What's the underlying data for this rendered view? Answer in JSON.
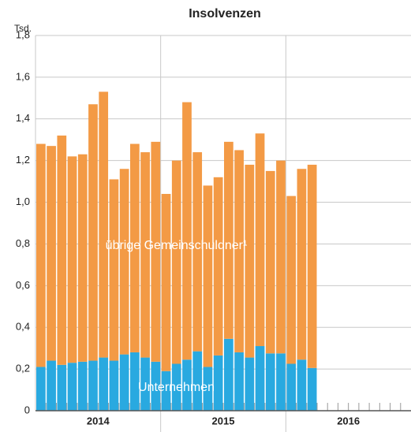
{
  "chart_data": {
    "type": "stacked-bar",
    "title": "Insolvenzen",
    "y_label": "Tsd.",
    "x_groups": [
      "2014",
      "2015",
      "2016"
    ],
    "categories": [
      null,
      null,
      null,
      null,
      null,
      null,
      null,
      null,
      null,
      null,
      null,
      null,
      null,
      null,
      null,
      null,
      null,
      null,
      null,
      null,
      null,
      null,
      null,
      null,
      null,
      null,
      null
    ],
    "series": [
      {
        "name": "Unternehmen",
        "color": "#29a9e0",
        "values": [
          0.21,
          0.24,
          0.22,
          0.23,
          0.235,
          0.24,
          0.255,
          0.24,
          0.27,
          0.28,
          0.255,
          0.235,
          0.19,
          0.225,
          0.245,
          0.285,
          0.21,
          0.265,
          0.345,
          0.28,
          0.255,
          0.31,
          0.275,
          0.275,
          0.225,
          0.245,
          0.205
        ]
      },
      {
        "name": "übrige Gemeinschuldner¹",
        "color": "#f39a45",
        "values": [
          1.07,
          1.03,
          1.1,
          0.99,
          0.995,
          1.23,
          1.275,
          0.87,
          0.89,
          1.0,
          0.985,
          1.055,
          0.85,
          0.975,
          1.235,
          0.955,
          0.87,
          0.855,
          0.945,
          0.97,
          0.925,
          1.02,
          0.875,
          0.925,
          0.805,
          0.915,
          0.975
        ]
      }
    ],
    "ylim": [
      0,
      1.8
    ],
    "yticks": [
      0,
      {
        "value": 0.2,
        "label": "0,2"
      },
      {
        "value": 0.4,
        "label": "0,4"
      },
      {
        "value": 0.6,
        "label": "0,6"
      },
      {
        "value": 0.8,
        "label": "0,8"
      },
      {
        "value": 1.0,
        "label": "1,0"
      },
      {
        "value": 1.2,
        "label": "1,2"
      },
      {
        "value": 1.4,
        "label": "1,4"
      },
      {
        "value": 1.6,
        "label": "1,6"
      },
      {
        "value": 1.8,
        "label": "1,8"
      }
    ],
    "grid": true
  }
}
